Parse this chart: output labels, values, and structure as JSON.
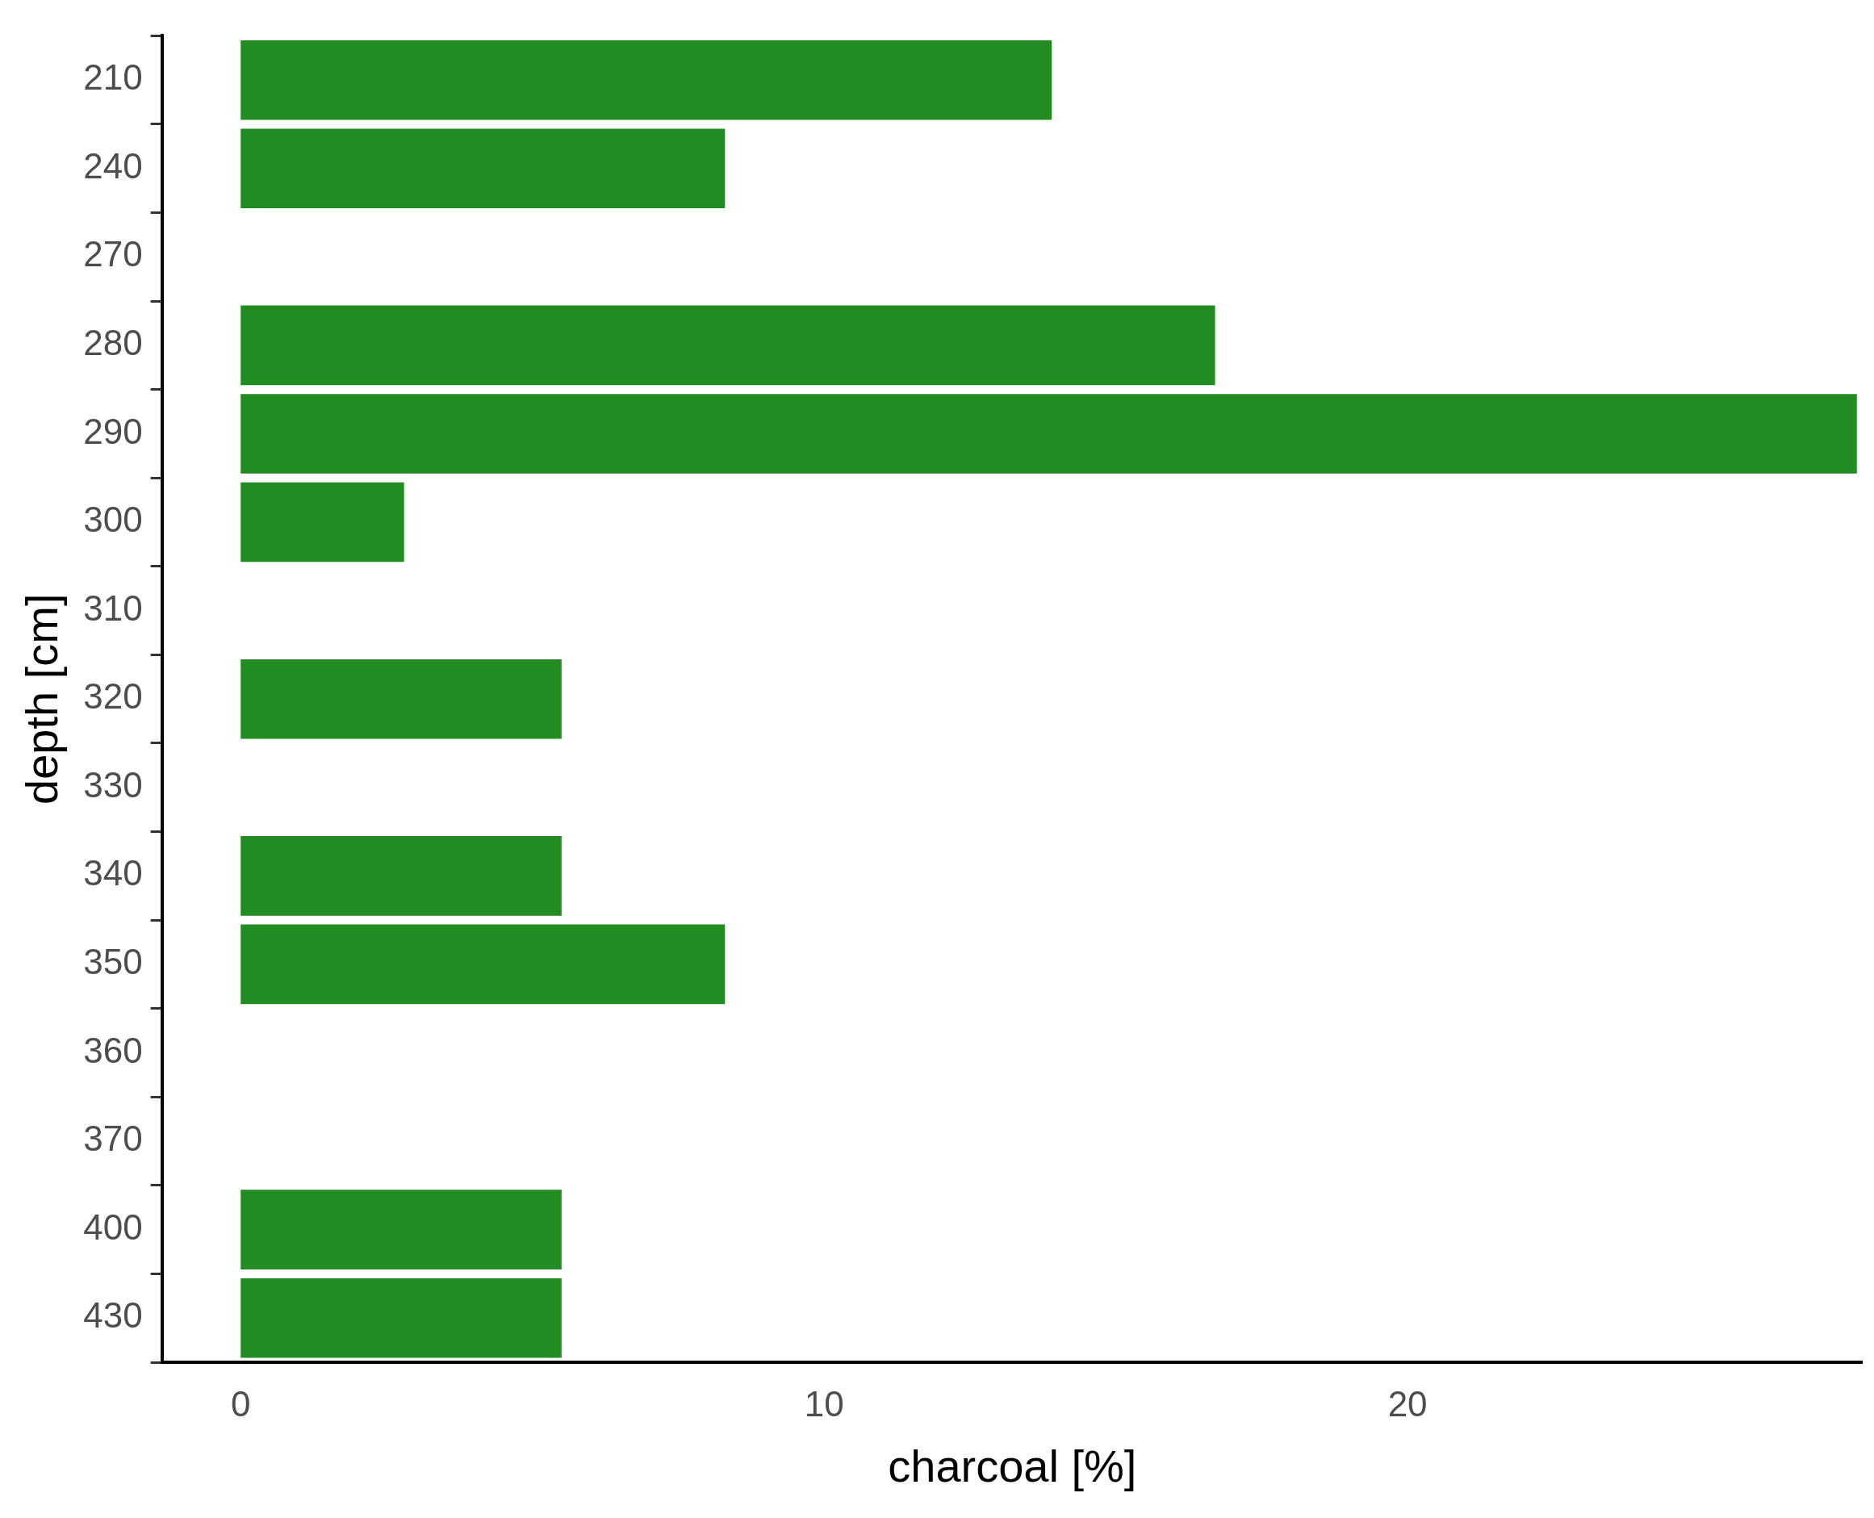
{
  "chart_data": {
    "type": "bar",
    "orientation": "horizontal",
    "xlabel": "charcoal [%]",
    "ylabel": "depth [cm]",
    "categories": [
      "210",
      "240",
      "270",
      "280",
      "290",
      "300",
      "310",
      "320",
      "330",
      "340",
      "350",
      "360",
      "370",
      "400",
      "430"
    ],
    "series": [
      {
        "color": "#228b22",
        "values": [
          13.9,
          8.3,
          null,
          16.7,
          27.7,
          2.8,
          null,
          5.5,
          null,
          5.5,
          8.3,
          null,
          null,
          5.5,
          5.5
        ]
      }
    ],
    "xlim": [
      -1.35,
      27.8
    ],
    "xticks": [
      0,
      10,
      20
    ],
    "grid": false,
    "legend": false
  }
}
